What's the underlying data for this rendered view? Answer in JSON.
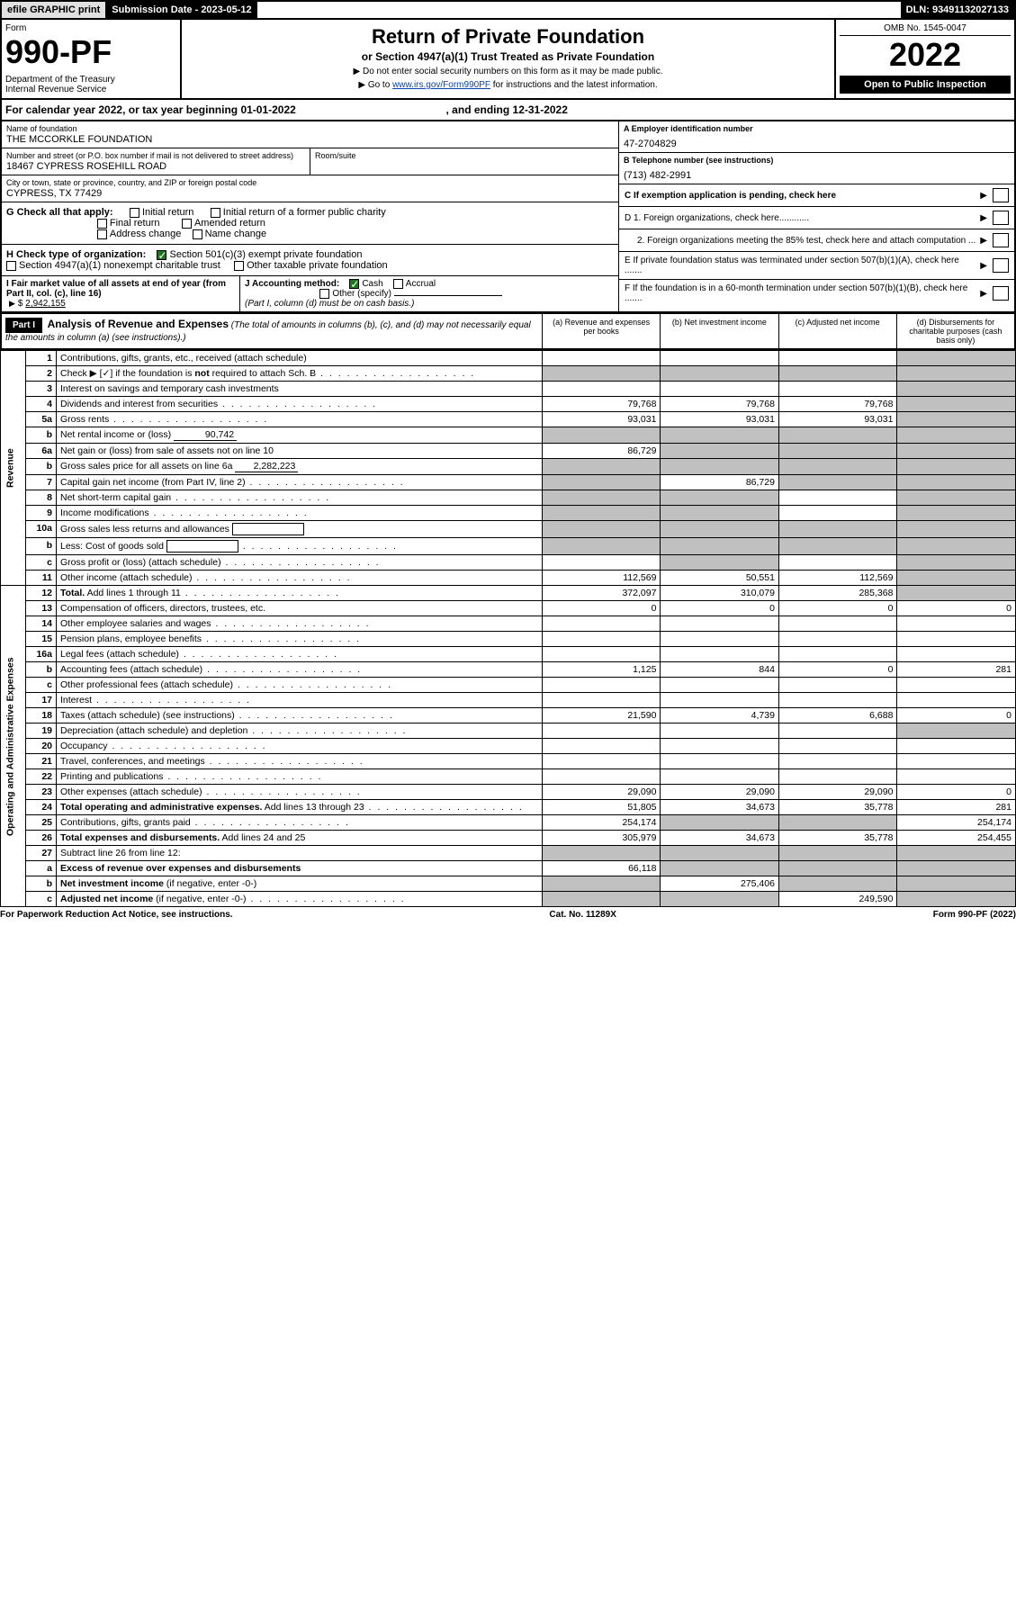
{
  "header": {
    "efile": "efile GRAPHIC print",
    "submission": "Submission Date - 2023-05-12",
    "dln": "DLN: 93491132027133",
    "form_label": "Form",
    "form_num": "990-PF",
    "dept": "Department of the Treasury\nInternal Revenue Service",
    "title": "Return of Private Foundation",
    "subtitle": "or Section 4947(a)(1) Trust Treated as Private Foundation",
    "note1": "▶ Do not enter social security numbers on this form as it may be made public.",
    "note2_pre": "▶ Go to ",
    "note2_link": "www.irs.gov/Form990PF",
    "note2_post": " for instructions and the latest information.",
    "omb": "OMB No. 1545-0047",
    "year": "2022",
    "open": "Open to Public Inspection"
  },
  "calendar": {
    "text1": "For calendar year 2022, or tax year beginning 01-01-2022",
    "text2": ", and ending 12-31-2022"
  },
  "info": {
    "name_label": "Name of foundation",
    "name": "THE MCCORKLE FOUNDATION",
    "addr_label": "Number and street (or P.O. box number if mail is not delivered to street address)",
    "addr": "18467 CYPRESS ROSEHILL ROAD",
    "room_label": "Room/suite",
    "room": "",
    "city_label": "City or town, state or province, country, and ZIP or foreign postal code",
    "city": "CYPRESS, TX  77429",
    "ein_label": "A Employer identification number",
    "ein": "47-2704829",
    "phone_label": "B Telephone number (see instructions)",
    "phone": "(713) 482-2991",
    "c_label": "C If exemption application is pending, check here",
    "d1": "D 1. Foreign organizations, check here............",
    "d2": "2. Foreign organizations meeting the 85% test, check here and attach computation ...",
    "e": "E  If private foundation status was terminated under section 507(b)(1)(A), check here .......",
    "f": "F  If the foundation is in a 60-month termination under section 507(b)(1)(B), check here .......",
    "g_label": "G Check all that apply:",
    "g_opts": [
      "Initial return",
      "Final return",
      "Address change",
      "Initial return of a former public charity",
      "Amended return",
      "Name change"
    ],
    "h_label": "H Check type of organization:",
    "h1": "Section 501(c)(3) exempt private foundation",
    "h2": "Section 4947(a)(1) nonexempt charitable trust",
    "h3": "Other taxable private foundation",
    "i_label": "I Fair market value of all assets at end of year (from Part II, col. (c), line 16)",
    "i_val": "2,942,155",
    "j_label": "J Accounting method:",
    "j1": "Cash",
    "j2": "Accrual",
    "j3": "Other (specify)",
    "j_note": "(Part I, column (d) must be on cash basis.)"
  },
  "part1": {
    "header": "Part I",
    "title": "Analysis of Revenue and Expenses",
    "title_note": "(The total of amounts in columns (b), (c), and (d) may not necessarily equal the amounts in column (a) (see instructions).)",
    "cols": [
      "(a)  Revenue and expenses per books",
      "(b)  Net investment income",
      "(c)  Adjusted net income",
      "(d)  Disbursements for charitable purposes (cash basis only)"
    ]
  },
  "side": {
    "rev": "Revenue",
    "exp": "Operating and Administrative Expenses"
  },
  "rows": [
    {
      "ln": "1",
      "desc": "Contributions, gifts, grants, etc., received (attach schedule)",
      "a": "",
      "b": "",
      "c": "",
      "d": "",
      "dShade": true
    },
    {
      "ln": "2",
      "desc": "Check ▶ [✓] if the foundation is <b>not</b> required to attach Sch. B",
      "dots": true,
      "noAmts": true
    },
    {
      "ln": "3",
      "desc": "Interest on savings and temporary cash investments",
      "a": "",
      "b": "",
      "c": "",
      "d": "",
      "dShade": true
    },
    {
      "ln": "4",
      "desc": "Dividends and interest from securities",
      "dots": true,
      "a": "79,768",
      "b": "79,768",
      "c": "79,768",
      "d": "",
      "dShade": true
    },
    {
      "ln": "5a",
      "desc": "Gross rents",
      "dots": true,
      "a": "93,031",
      "b": "93,031",
      "c": "93,031",
      "d": "",
      "dShade": true
    },
    {
      "ln": "b",
      "desc": "Net rental income or (loss)",
      "inline": "90,742",
      "allShade": true
    },
    {
      "ln": "6a",
      "desc": "Net gain or (loss) from sale of assets not on line 10",
      "a": "86,729",
      "b": "",
      "bShade": true,
      "c": "",
      "cShade": true,
      "d": "",
      "dShade": true
    },
    {
      "ln": "b",
      "desc": "Gross sales price for all assets on line 6a",
      "inline": "2,282,223",
      "allShade": true
    },
    {
      "ln": "7",
      "desc": "Capital gain net income (from Part IV, line 2)",
      "dots": true,
      "a": "",
      "aShade": true,
      "b": "86,729",
      "c": "",
      "cShade": true,
      "d": "",
      "dShade": true
    },
    {
      "ln": "8",
      "desc": "Net short-term capital gain",
      "dots": true,
      "a": "",
      "aShade": true,
      "b": "",
      "bShade": true,
      "c": "",
      "d": "",
      "dShade": true
    },
    {
      "ln": "9",
      "desc": "Income modifications",
      "dots": true,
      "a": "",
      "aShade": true,
      "b": "",
      "bShade": true,
      "c": "",
      "d": "",
      "dShade": true
    },
    {
      "ln": "10a",
      "desc": "Gross sales less returns and allowances",
      "box": true,
      "allShade": true
    },
    {
      "ln": "b",
      "desc": "Less: Cost of goods sold",
      "dots": true,
      "box": true,
      "allShade": true
    },
    {
      "ln": "c",
      "desc": "Gross profit or (loss) (attach schedule)",
      "dots": true,
      "a": "",
      "b": "",
      "bShade": true,
      "c": "",
      "d": "",
      "dShade": true
    },
    {
      "ln": "11",
      "desc": "Other income (attach schedule)",
      "dots": true,
      "a": "112,569",
      "b": "50,551",
      "c": "112,569",
      "d": "",
      "dShade": true
    },
    {
      "ln": "12",
      "desc": "<b>Total.</b> Add lines 1 through 11",
      "dots": true,
      "a": "372,097",
      "b": "310,079",
      "c": "285,368",
      "d": "",
      "dShade": true
    },
    {
      "ln": "13",
      "desc": "Compensation of officers, directors, trustees, etc.",
      "a": "0",
      "b": "0",
      "c": "0",
      "d": "0"
    },
    {
      "ln": "14",
      "desc": "Other employee salaries and wages",
      "dots": true,
      "a": "",
      "b": "",
      "c": "",
      "d": ""
    },
    {
      "ln": "15",
      "desc": "Pension plans, employee benefits",
      "dots": true,
      "a": "",
      "b": "",
      "c": "",
      "d": ""
    },
    {
      "ln": "16a",
      "desc": "Legal fees (attach schedule)",
      "dots": true,
      "a": "",
      "b": "",
      "c": "",
      "d": ""
    },
    {
      "ln": "b",
      "desc": "Accounting fees (attach schedule)",
      "dots": true,
      "a": "1,125",
      "b": "844",
      "c": "0",
      "d": "281"
    },
    {
      "ln": "c",
      "desc": "Other professional fees (attach schedule)",
      "dots": true,
      "a": "",
      "b": "",
      "c": "",
      "d": ""
    },
    {
      "ln": "17",
      "desc": "Interest",
      "dots": true,
      "a": "",
      "b": "",
      "c": "",
      "d": ""
    },
    {
      "ln": "18",
      "desc": "Taxes (attach schedule) (see instructions)",
      "dots": true,
      "a": "21,590",
      "b": "4,739",
      "c": "6,688",
      "d": "0"
    },
    {
      "ln": "19",
      "desc": "Depreciation (attach schedule) and depletion",
      "dots": true,
      "a": "",
      "b": "",
      "c": "",
      "d": "",
      "dShade": true
    },
    {
      "ln": "20",
      "desc": "Occupancy",
      "dots": true,
      "a": "",
      "b": "",
      "c": "",
      "d": ""
    },
    {
      "ln": "21",
      "desc": "Travel, conferences, and meetings",
      "dots": true,
      "a": "",
      "b": "",
      "c": "",
      "d": ""
    },
    {
      "ln": "22",
      "desc": "Printing and publications",
      "dots": true,
      "a": "",
      "b": "",
      "c": "",
      "d": ""
    },
    {
      "ln": "23",
      "desc": "Other expenses (attach schedule)",
      "dots": true,
      "a": "29,090",
      "b": "29,090",
      "c": "29,090",
      "d": "0"
    },
    {
      "ln": "24",
      "desc": "<b>Total operating and administrative expenses.</b> Add lines 13 through 23",
      "dots": true,
      "a": "51,805",
      "b": "34,673",
      "c": "35,778",
      "d": "281"
    },
    {
      "ln": "25",
      "desc": "Contributions, gifts, grants paid",
      "dots": true,
      "a": "254,174",
      "b": "",
      "bShade": true,
      "c": "",
      "cShade": true,
      "d": "254,174"
    },
    {
      "ln": "26",
      "desc": "<b>Total expenses and disbursements.</b> Add lines 24 and 25",
      "a": "305,979",
      "b": "34,673",
      "c": "35,778",
      "d": "254,455"
    },
    {
      "ln": "27",
      "desc": "Subtract line 26 from line 12:",
      "a": "",
      "aShade": true,
      "b": "",
      "bShade": true,
      "c": "",
      "cShade": true,
      "d": "",
      "dShade": true
    },
    {
      "ln": "a",
      "desc": "<b>Excess of revenue over expenses and disbursements</b>",
      "a": "66,118",
      "b": "",
      "bShade": true,
      "c": "",
      "cShade": true,
      "d": "",
      "dShade": true
    },
    {
      "ln": "b",
      "desc": "<b>Net investment income</b> (if negative, enter -0-)",
      "a": "",
      "aShade": true,
      "b": "275,406",
      "c": "",
      "cShade": true,
      "d": "",
      "dShade": true
    },
    {
      "ln": "c",
      "desc": "<b>Adjusted net income</b> (if negative, enter -0-)",
      "dots": true,
      "a": "",
      "aShade": true,
      "b": "",
      "bShade": true,
      "c": "249,590",
      "d": "",
      "dShade": true
    }
  ],
  "footer": {
    "left": "For Paperwork Reduction Act Notice, see instructions.",
    "mid": "Cat. No. 11289X",
    "right": "Form 990-PF (2022)"
  }
}
